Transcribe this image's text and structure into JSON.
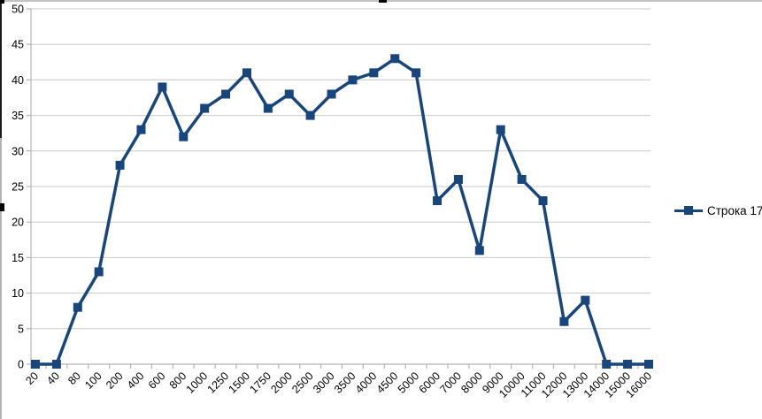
{
  "chart_data": {
    "type": "line",
    "title": "",
    "categories": [
      "20",
      "40",
      "80",
      "100",
      "200",
      "400",
      "600",
      "800",
      "1000",
      "1250",
      "1500",
      "1750",
      "2000",
      "2500",
      "3000",
      "3500",
      "4000",
      "4500",
      "5000",
      "6000",
      "7000",
      "8000",
      "9000",
      "10000",
      "11000",
      "12000",
      "13000",
      "14000",
      "15000",
      "16000"
    ],
    "series": [
      {
        "name": "Строка 17",
        "values": [
          0,
          0,
          8,
          13,
          28,
          33,
          39,
          32,
          36,
          38,
          41,
          36,
          38,
          35,
          38,
          40,
          41,
          43,
          41,
          23,
          26,
          16,
          33,
          26,
          23,
          6,
          9,
          0,
          0,
          0
        ],
        "color": "#17457c",
        "marker": "square"
      }
    ],
    "ylim": [
      0,
      50
    ],
    "yticks": [
      0,
      5,
      10,
      15,
      20,
      25,
      30,
      35,
      40,
      45,
      50
    ],
    "xlabel": "",
    "ylabel": "",
    "grid": true,
    "legend_position": "right",
    "x_label_rotation": -45
  },
  "colors": {
    "background": "#ffffff",
    "gridline": "#c9c9c9",
    "axis": "#b3b3b3",
    "tick_text": "#000000",
    "series1": "#17457c",
    "selection_edge": "#c2c2c2",
    "selection_handle": "#000000"
  }
}
